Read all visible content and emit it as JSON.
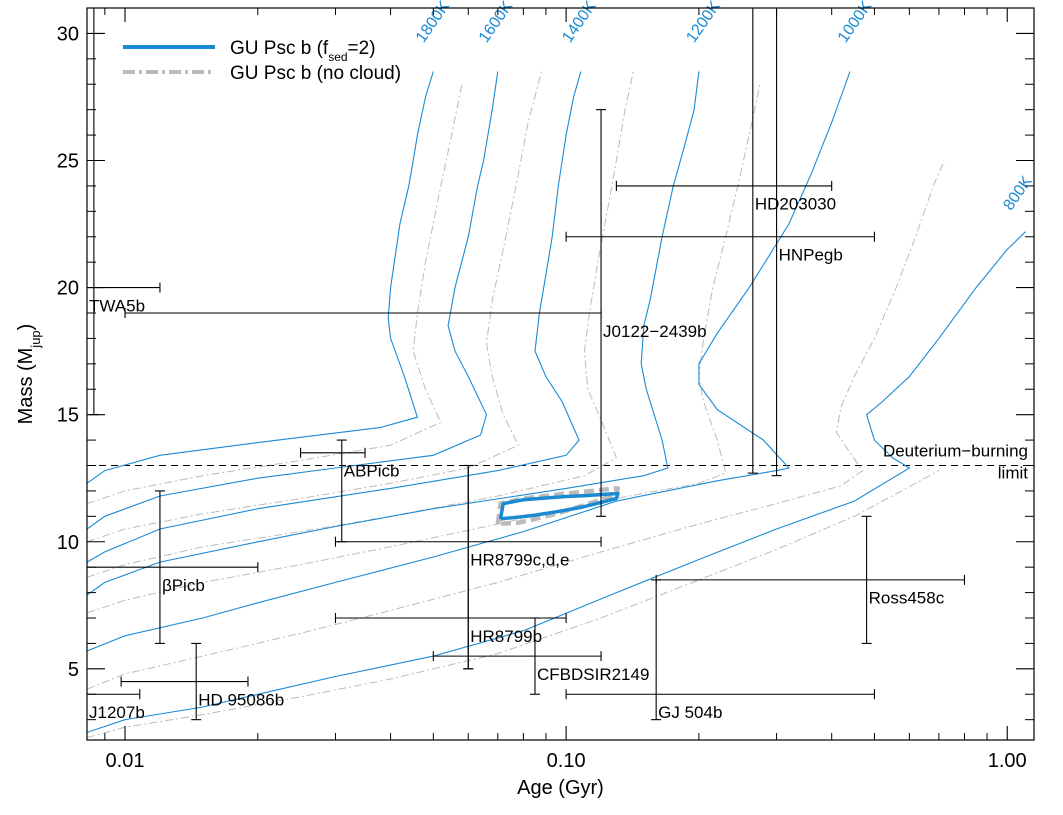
{
  "chart_data": {
    "type": "line",
    "xlabel": "Age (Gyr)",
    "ylabel_main": "Mass (M",
    "ylabel_sub": "jup",
    "ylabel_close": ")",
    "xscale": "log",
    "xlim": [
      0.0082,
      1.15
    ],
    "ylim": [
      2.2,
      31
    ],
    "x_ticks": [
      0.01,
      0.1,
      1.0
    ],
    "x_tick_labels": [
      "0.01",
      "0.10",
      "1.00"
    ],
    "y_ticks": [
      5,
      10,
      15,
      20,
      25,
      30
    ],
    "y_tick_labels": [
      "5",
      "10",
      "15",
      "20",
      "25",
      "30"
    ],
    "legend_placement": "top-left",
    "colors": {
      "cloudy": "#1a8ad4",
      "nocloud": "#bbbbbb",
      "errorbar": "#000000",
      "grid": "#000000"
    },
    "legend": [
      {
        "key": "cloudy",
        "text_main": "GU Psc b (f",
        "text_sub": "sed",
        "text_rest": "=2)"
      },
      {
        "key": "nocloud",
        "text_main": "GU Psc b (no cloud)",
        "text_sub": "",
        "text_rest": ""
      }
    ],
    "deuterium": {
      "y": 13,
      "label_line1": "Deuterium−burning",
      "label_line2": "limit"
    },
    "isochrones": [
      {
        "label": "1800K",
        "label_at": [
          0.0475,
          29.6
        ],
        "points": [
          [
            0.0082,
            12.3
          ],
          [
            0.009,
            12.8
          ],
          [
            0.012,
            13.4
          ],
          [
            0.02,
            13.9
          ],
          [
            0.038,
            14.5
          ],
          [
            0.046,
            14.9
          ],
          [
            0.043,
            16.5
          ],
          [
            0.04,
            18
          ],
          [
            0.0395,
            18.8
          ],
          [
            0.04,
            20
          ],
          [
            0.042,
            22.5
          ],
          [
            0.044,
            24
          ],
          [
            0.045,
            25
          ],
          [
            0.046,
            26
          ],
          [
            0.048,
            27.5
          ],
          [
            0.05,
            28.5
          ]
        ]
      },
      {
        "label": "1600K",
        "label_at": [
          0.066,
          29.6
        ],
        "points": [
          [
            0.0082,
            10.5
          ],
          [
            0.009,
            11
          ],
          [
            0.012,
            11.8
          ],
          [
            0.02,
            12.5
          ],
          [
            0.03,
            12.9
          ],
          [
            0.05,
            13.4
          ],
          [
            0.064,
            14.2
          ],
          [
            0.066,
            15
          ],
          [
            0.06,
            16.5
          ],
          [
            0.056,
            17.5
          ],
          [
            0.054,
            18.5
          ],
          [
            0.056,
            20
          ],
          [
            0.06,
            22
          ],
          [
            0.063,
            24
          ],
          [
            0.065,
            25
          ],
          [
            0.068,
            27
          ],
          [
            0.07,
            28.5
          ]
        ]
      },
      {
        "label": "1400K",
        "label_at": [
          0.102,
          29.6
        ],
        "points": [
          [
            0.0082,
            9.2
          ],
          [
            0.009,
            9.6
          ],
          [
            0.012,
            10.5
          ],
          [
            0.02,
            11.3
          ],
          [
            0.04,
            12.1
          ],
          [
            0.07,
            12.8
          ],
          [
            0.1,
            13.4
          ],
          [
            0.107,
            14
          ],
          [
            0.098,
            15.5
          ],
          [
            0.09,
            16.5
          ],
          [
            0.085,
            17.5
          ],
          [
            0.087,
            19
          ],
          [
            0.09,
            20.5
          ],
          [
            0.093,
            22
          ],
          [
            0.096,
            24
          ],
          [
            0.1,
            26
          ],
          [
            0.104,
            27.5
          ],
          [
            0.108,
            28.5
          ]
        ]
      },
      {
        "label": "1200K",
        "label_at": [
          0.195,
          29.6
        ],
        "points": [
          [
            0.0082,
            7.9
          ],
          [
            0.009,
            8.4
          ],
          [
            0.012,
            9.2
          ],
          [
            0.02,
            10
          ],
          [
            0.03,
            10.6
          ],
          [
            0.05,
            11.3
          ],
          [
            0.1,
            12.1
          ],
          [
            0.15,
            12.6
          ],
          [
            0.17,
            12.9
          ],
          [
            0.165,
            14
          ],
          [
            0.152,
            16
          ],
          [
            0.148,
            17
          ],
          [
            0.15,
            18.5
          ],
          [
            0.155,
            19.5
          ],
          [
            0.165,
            22
          ],
          [
            0.175,
            24
          ],
          [
            0.185,
            25.5
          ],
          [
            0.195,
            27
          ],
          [
            0.2,
            28.5
          ]
        ]
      },
      {
        "label": "1000K",
        "label_at": [
          0.43,
          29.6
        ],
        "points": [
          [
            0.0082,
            5.7
          ],
          [
            0.01,
            6.3
          ],
          [
            0.015,
            7
          ],
          [
            0.02,
            7.6
          ],
          [
            0.03,
            8.4
          ],
          [
            0.05,
            9.4
          ],
          [
            0.08,
            10.4
          ],
          [
            0.13,
            11.6
          ],
          [
            0.22,
            12.4
          ],
          [
            0.3,
            12.8
          ],
          [
            0.32,
            12.9
          ],
          [
            0.28,
            14
          ],
          [
            0.22,
            15.2
          ],
          [
            0.2,
            16.2
          ],
          [
            0.2,
            17
          ],
          [
            0.22,
            18.2
          ],
          [
            0.26,
            20
          ],
          [
            0.32,
            22.5
          ],
          [
            0.36,
            24.5
          ],
          [
            0.4,
            26.5
          ],
          [
            0.44,
            28.5
          ]
        ]
      },
      {
        "label": "800K",
        "label_at": [
          1.02,
          23.0
        ],
        "points": [
          [
            0.0082,
            2.5
          ],
          [
            0.01,
            3
          ],
          [
            0.015,
            3.5
          ],
          [
            0.02,
            4
          ],
          [
            0.03,
            4.7
          ],
          [
            0.05,
            5.5
          ],
          [
            0.08,
            6.5
          ],
          [
            0.13,
            8
          ],
          [
            0.2,
            9.3
          ],
          [
            0.3,
            10.5
          ],
          [
            0.45,
            11.6
          ],
          [
            0.6,
            12.9
          ],
          [
            0.55,
            13.3
          ],
          [
            0.5,
            14
          ],
          [
            0.48,
            15
          ],
          [
            0.52,
            15.5
          ],
          [
            0.6,
            16.5
          ],
          [
            0.7,
            18
          ],
          [
            0.85,
            20
          ],
          [
            1.0,
            21.5
          ],
          [
            1.1,
            22.2
          ]
        ]
      }
    ],
    "nocloud_isochrones": [
      [
        [
          0.0082,
          11.5
        ],
        [
          0.01,
          12
        ],
        [
          0.015,
          12.6
        ],
        [
          0.025,
          13.2
        ],
        [
          0.04,
          13.8
        ],
        [
          0.052,
          14.7
        ],
        [
          0.048,
          16
        ],
        [
          0.045,
          17.5
        ],
        [
          0.046,
          19
        ],
        [
          0.048,
          21
        ],
        [
          0.052,
          24
        ],
        [
          0.055,
          26
        ],
        [
          0.058,
          28
        ]
      ],
      [
        [
          0.0082,
          10
        ],
        [
          0.01,
          10.5
        ],
        [
          0.015,
          11.1
        ],
        [
          0.025,
          11.7
        ],
        [
          0.04,
          12.3
        ],
        [
          0.06,
          12.9
        ],
        [
          0.078,
          13.8
        ],
        [
          0.072,
          15
        ],
        [
          0.068,
          16.5
        ],
        [
          0.066,
          17.8
        ],
        [
          0.068,
          19.5
        ],
        [
          0.072,
          21.5
        ],
        [
          0.077,
          24
        ],
        [
          0.082,
          26.5
        ],
        [
          0.088,
          28.5
        ]
      ],
      [
        [
          0.0082,
          8.6
        ],
        [
          0.01,
          9.1
        ],
        [
          0.015,
          9.8
        ],
        [
          0.025,
          10.4
        ],
        [
          0.04,
          11
        ],
        [
          0.07,
          11.8
        ],
        [
          0.11,
          12.6
        ],
        [
          0.13,
          13.3
        ],
        [
          0.12,
          14.8
        ],
        [
          0.112,
          16
        ],
        [
          0.11,
          17.5
        ],
        [
          0.113,
          19
        ],
        [
          0.118,
          21
        ],
        [
          0.124,
          23
        ],
        [
          0.13,
          25
        ],
        [
          0.136,
          27
        ],
        [
          0.142,
          28.5
        ]
      ],
      [
        [
          0.0082,
          7.2
        ],
        [
          0.01,
          7.7
        ],
        [
          0.015,
          8.4
        ],
        [
          0.025,
          9.1
        ],
        [
          0.04,
          9.8
        ],
        [
          0.07,
          10.7
        ],
        [
          0.12,
          11.6
        ],
        [
          0.2,
          12.3
        ],
        [
          0.23,
          12.7
        ],
        [
          0.22,
          14
        ],
        [
          0.205,
          15.5
        ],
        [
          0.2,
          16.5
        ],
        [
          0.205,
          18
        ],
        [
          0.215,
          20
        ],
        [
          0.23,
          22
        ],
        [
          0.245,
          24
        ],
        [
          0.26,
          26
        ],
        [
          0.275,
          28
        ]
      ],
      [
        [
          0.0082,
          4.2
        ],
        [
          0.01,
          4.8
        ],
        [
          0.015,
          5.5
        ],
        [
          0.025,
          6.4
        ],
        [
          0.04,
          7.3
        ],
        [
          0.07,
          8.4
        ],
        [
          0.12,
          9.6
        ],
        [
          0.2,
          10.7
        ],
        [
          0.3,
          11.5
        ],
        [
          0.42,
          12.2
        ],
        [
          0.47,
          12.8
        ],
        [
          0.44,
          13.5
        ],
        [
          0.41,
          14.3
        ],
        [
          0.42,
          15.3
        ],
        [
          0.45,
          16.5
        ],
        [
          0.5,
          18
        ],
        [
          0.56,
          20
        ],
        [
          0.62,
          22
        ],
        [
          0.68,
          24
        ],
        [
          0.72,
          25
        ]
      ],
      [
        [
          0.0082,
          2.3
        ],
        [
          0.01,
          2.7
        ],
        [
          0.015,
          3.2
        ],
        [
          0.025,
          3.9
        ],
        [
          0.04,
          4.6
        ],
        [
          0.07,
          5.6
        ],
        [
          0.12,
          7
        ],
        [
          0.2,
          8.5
        ],
        [
          0.3,
          9.7
        ],
        [
          0.45,
          11
        ],
        [
          0.62,
          12.3
        ],
        [
          0.7,
          12.8
        ]
      ]
    ],
    "gupsc_track_cloudy": [
      [
        0.071,
        10.9
      ],
      [
        0.072,
        11.5
      ],
      [
        0.08,
        11.65
      ],
      [
        0.09,
        11.72
      ],
      [
        0.1,
        11.78
      ],
      [
        0.112,
        11.82
      ],
      [
        0.125,
        11.88
      ],
      [
        0.131,
        11.9
      ],
      [
        0.13,
        11.7
      ],
      [
        0.12,
        11.55
      ],
      [
        0.108,
        11.35
      ],
      [
        0.095,
        11.18
      ],
      [
        0.085,
        11.05
      ],
      [
        0.078,
        10.97
      ],
      [
        0.071,
        10.9
      ]
    ],
    "gupsc_track_nocloud": [
      [
        0.07,
        10.7
      ],
      [
        0.071,
        11.5
      ],
      [
        0.08,
        11.7
      ],
      [
        0.09,
        11.8
      ],
      [
        0.1,
        11.9
      ],
      [
        0.112,
        11.98
      ],
      [
        0.122,
        12.05
      ],
      [
        0.131,
        12.1
      ],
      [
        0.13,
        11.85
      ],
      [
        0.12,
        11.65
      ],
      [
        0.108,
        11.4
      ],
      [
        0.095,
        11.1
      ],
      [
        0.085,
        10.9
      ],
      [
        0.078,
        10.75
      ],
      [
        0.07,
        10.7
      ]
    ],
    "objects": [
      {
        "name": "TWA5b",
        "x": 0.0085,
        "y": 20,
        "xerr": [
          0.0082,
          0.012
        ],
        "yerr": [
          15,
          31
        ],
        "label_at": [
          0.0082,
          19.3
        ]
      },
      {
        "name": "J0122−2439b",
        "x": 0.12,
        "y": 19,
        "xerr": [
          0.01,
          0.12
        ],
        "yerr": [
          11,
          27
        ],
        "label_at": [
          0.12,
          18.3
        ]
      },
      {
        "name": "HD203030",
        "x": 0.265,
        "y": 24,
        "xerr": [
          0.13,
          0.4
        ],
        "yerr": [
          12.7,
          31
        ],
        "label_at": [
          0.265,
          23.3
        ]
      },
      {
        "name": "HNPegb",
        "x": 0.3,
        "y": 22,
        "xerr": [
          0.1,
          0.5
        ],
        "yerr": [
          12.6,
          31
        ],
        "label_at": [
          0.3,
          21.3
        ]
      },
      {
        "name": "ABPicb",
        "x": 0.031,
        "y": 13.5,
        "xerr": [
          0.025,
          0.035
        ],
        "yerr": [
          10,
          14
        ],
        "label_at": [
          0.031,
          12.8
        ]
      },
      {
        "name": "βPicb",
        "x": 0.012,
        "y": 9,
        "xerr": [
          0.0082,
          0.02
        ],
        "yerr": [
          6,
          12
        ],
        "label_at": [
          0.012,
          8.3
        ]
      },
      {
        "name": "HR8799c,d,e",
        "x": 0.06,
        "y": 10,
        "xerr": [
          0.03,
          0.12
        ],
        "yerr": [
          5,
          13
        ],
        "label_at": [
          0.06,
          9.3
        ]
      },
      {
        "name": "HR8799b",
        "x": 0.06,
        "y": 7,
        "xerr": [
          0.03,
          0.1
        ],
        "yerr": [
          5,
          13
        ],
        "label_at": [
          0.06,
          6.3
        ]
      },
      {
        "name": "CFBDSIR2149",
        "x": 0.085,
        "y": 5.5,
        "xerr": [
          0.05,
          0.12
        ],
        "yerr": [
          4,
          7
        ],
        "label_at": [
          0.085,
          4.8
        ]
      },
      {
        "name": "Ross458c",
        "x": 0.48,
        "y": 8.5,
        "xerr": [
          0.16,
          0.8
        ],
        "yerr": [
          6,
          11
        ],
        "label_at": [
          0.48,
          7.8
        ]
      },
      {
        "name": "GJ 504b",
        "x": 0.16,
        "y": 4,
        "xerr": [
          0.1,
          0.5
        ],
        "yerr": [
          3,
          8.5
        ],
        "label_at": [
          0.16,
          3.3
        ]
      },
      {
        "name": "HD 95086b",
        "x": 0.0145,
        "y": 4.5,
        "xerr": [
          0.0098,
          0.019
        ],
        "yerr": [
          3,
          6
        ],
        "label_at": [
          0.0145,
          3.8
        ]
      },
      {
        "name": "J1207b",
        "x": 0.0082,
        "y": 4,
        "xerr": [
          0.0082,
          0.0108
        ],
        "yerr": [
          4,
          4
        ],
        "label_at": [
          0.0082,
          3.3
        ]
      }
    ]
  }
}
